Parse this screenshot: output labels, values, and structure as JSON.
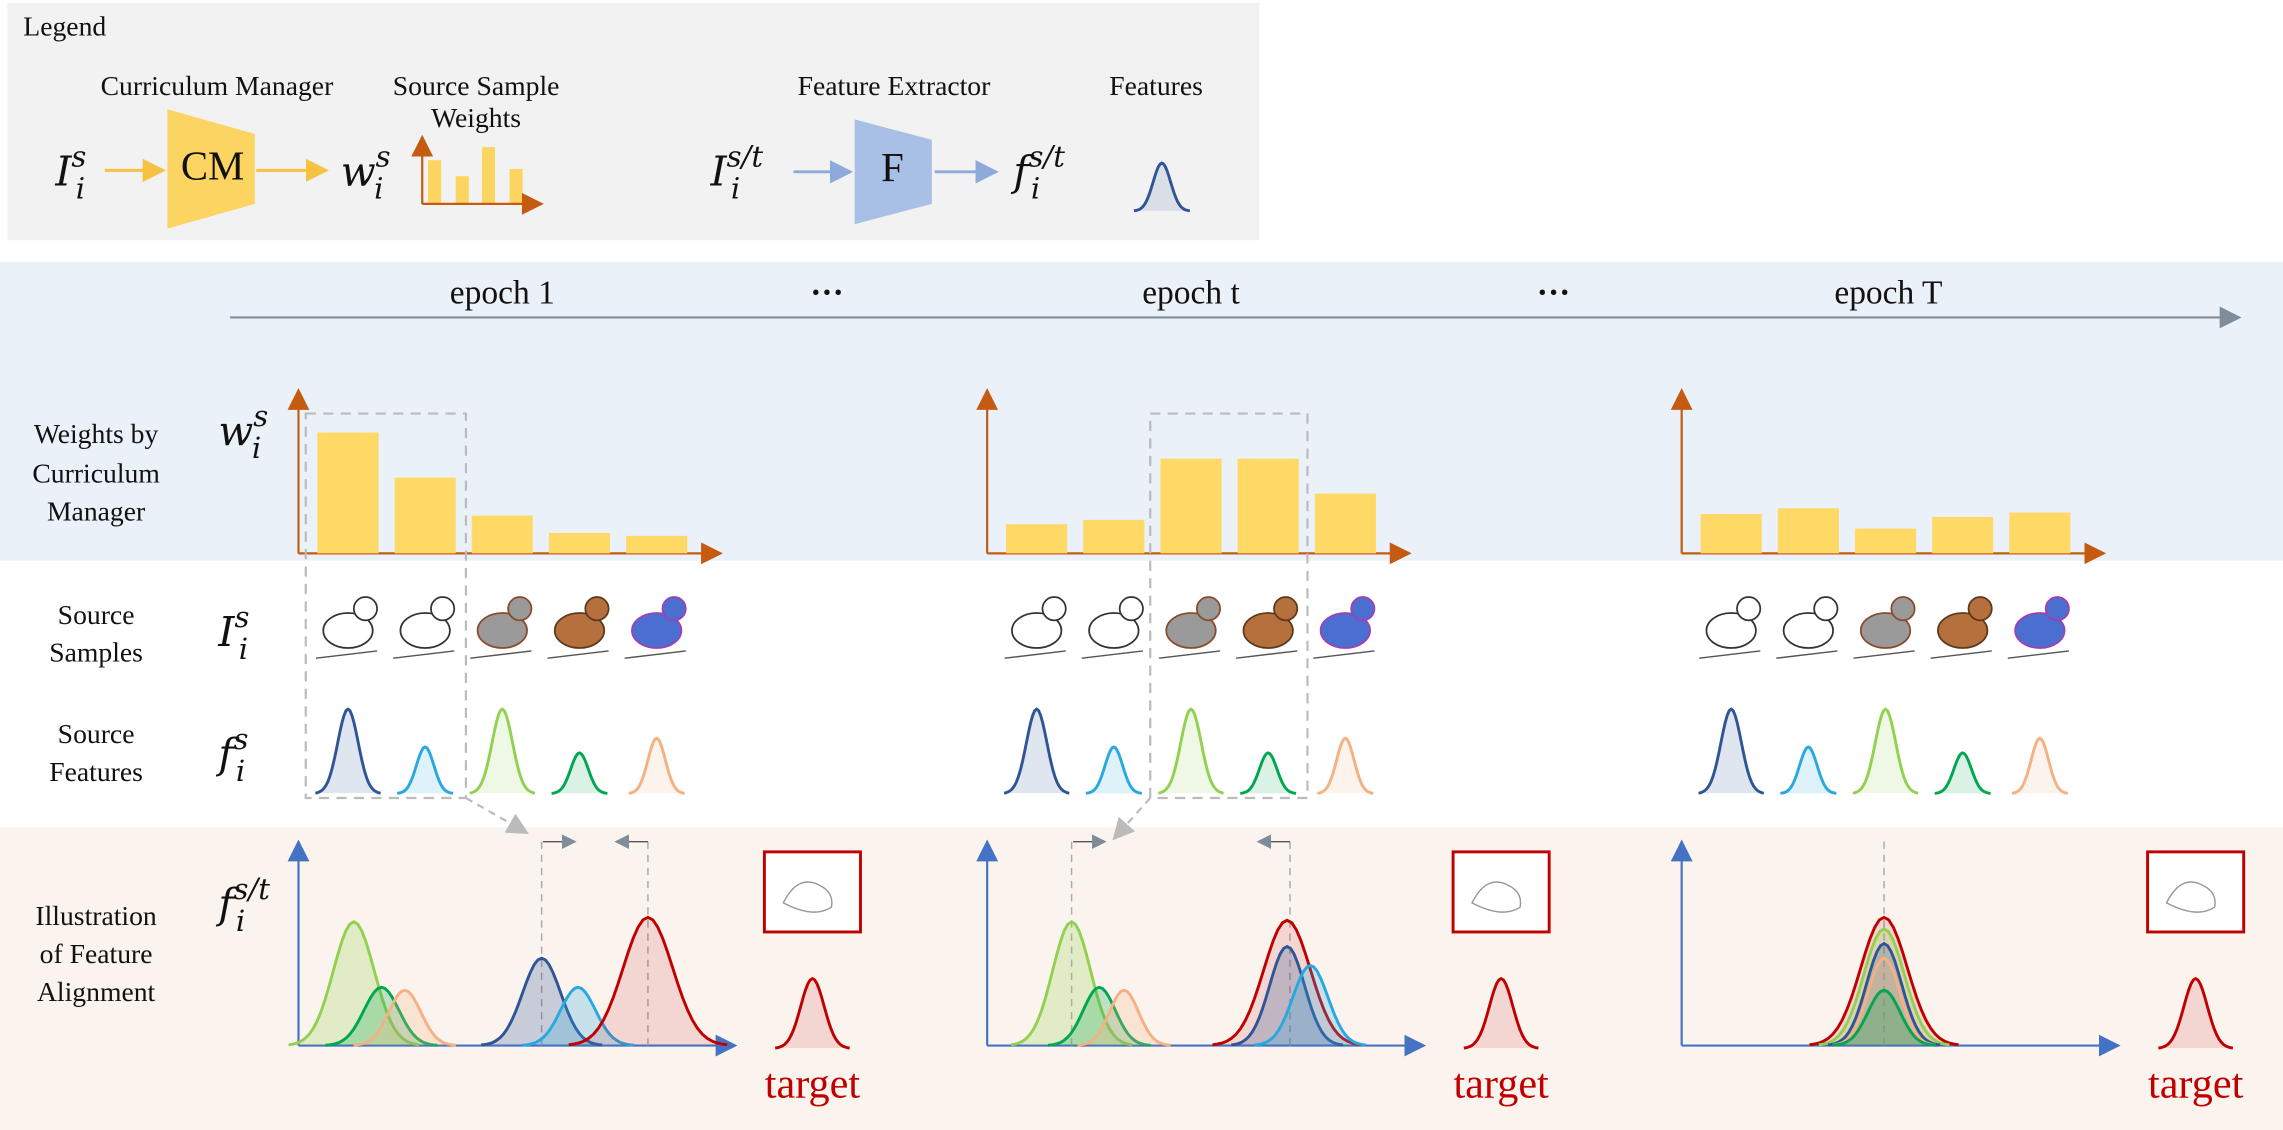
{
  "legend": {
    "title": "Legend",
    "curriculum_manager": "Curriculum Manager",
    "cm": "CM",
    "source_sample_weights": [
      "Source Sample",
      "Weights"
    ],
    "feature_extractor": "Feature Extractor",
    "f": "F",
    "features": "Features",
    "symbols": {
      "source_image": {
        "base": "I",
        "sub": "i",
        "sup": "s"
      },
      "weight": {
        "base": "w",
        "sub": "i",
        "sup": "s"
      },
      "image": {
        "base": "I",
        "sub": "i",
        "sup": "s/t"
      },
      "feature": {
        "base": "f",
        "sub": "i",
        "sup": "s/t"
      }
    }
  },
  "epochs": [
    "epoch 1",
    "···",
    "epoch t",
    "···",
    "epoch T"
  ],
  "rows": [
    {
      "label": [
        "Weights by",
        "Curriculum",
        "Manager"
      ],
      "symbol": {
        "base": "w",
        "sub": "i",
        "sup": "s"
      }
    },
    {
      "label": [
        "Source",
        "Samples"
      ],
      "symbol": {
        "base": "I",
        "sub": "i",
        "sup": "s"
      }
    },
    {
      "label": [
        "Source",
        "Features"
      ],
      "symbol": {
        "base": "f",
        "sub": "i",
        "sup": "s"
      }
    },
    {
      "label": [
        "Illustration",
        "of Feature",
        "Alignment"
      ],
      "symbol": {
        "base": "f",
        "sub": "i",
        "sup": "s/t"
      }
    }
  ],
  "weights": [
    [
      0.83,
      0.52,
      0.26,
      0.14,
      0.12
    ],
    [
      0.2,
      0.23,
      0.65,
      0.65,
      0.41
    ],
    [
      0.27,
      0.31,
      0.17,
      0.25,
      0.28
    ]
  ],
  "target_label": "target"
}
